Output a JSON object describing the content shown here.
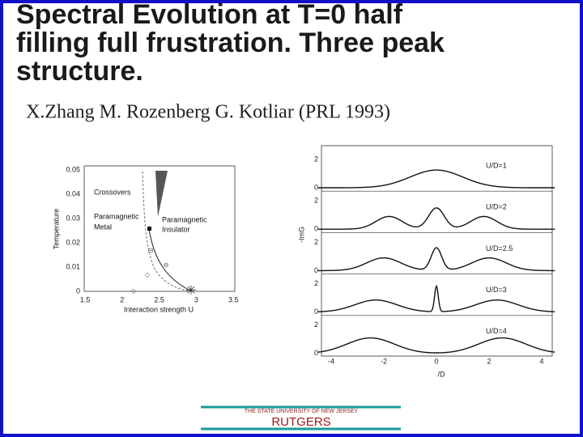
{
  "title_lines": [
    "Spectral Evolution at T=0  half",
    "filling full frustration. Three peak",
    "structure."
  ],
  "citation": "X.Zhang M. Rozenberg G. Kotliar (PRL 1993)",
  "phase_diagram": {
    "y_label": "Temperature",
    "x_label": "Interaction strength U",
    "yticks": [
      "0.05",
      "0.04",
      "0.03",
      "0.02",
      "0.01",
      "0"
    ],
    "xticks": [
      "1.5",
      "2",
      "2.5",
      "3",
      "3.5"
    ],
    "labels": [
      "Crossovers",
      "Paramagnetic",
      "Metal",
      "Paramagnetic",
      "Insulator"
    ]
  },
  "spectra": {
    "y_label": "-ImG",
    "x_label": "/D",
    "xticks": [
      "-4",
      "-2",
      "0",
      "2",
      "4"
    ],
    "panels": [
      {
        "label": "U/D=1",
        "yticks": [
          "2",
          "0"
        ]
      },
      {
        "label": "U/D=2",
        "yticks": [
          "2",
          "0"
        ]
      },
      {
        "label": "U/D=2.5",
        "yticks": [
          "2",
          "0"
        ]
      },
      {
        "label": "U/D=3",
        "yticks": [
          "2",
          "0"
        ]
      },
      {
        "label": "U/D=4",
        "yticks": [
          "2",
          "0"
        ]
      }
    ]
  },
  "footer": {
    "university": "THE STATE UNIVERSITY OF NEW JERSEY",
    "name": "RUTGERS"
  }
}
